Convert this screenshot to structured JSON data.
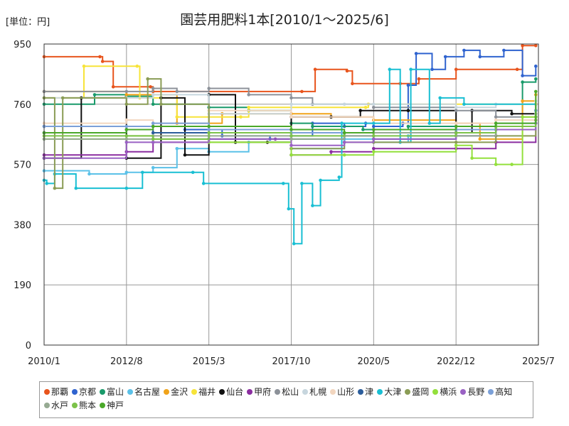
{
  "page": {
    "unit": "[単位：円]",
    "title": "園芸用肥料1本[2010/1～2025/6]"
  },
  "chart_data": {
    "type": "line",
    "ylim": [
      0,
      950
    ],
    "yticks": [
      0,
      190,
      380,
      570,
      760,
      950
    ],
    "xlim": [
      "2010/1",
      "2025/7"
    ],
    "xticks": [
      "2010/1",
      "2012/8",
      "2015/3",
      "2017/10",
      "2020/5",
      "2022/12",
      "2025/7"
    ],
    "grid": true,
    "legend_position": "bottom",
    "series": [
      {
        "name": "那覇",
        "color": "#e8541c",
        "points": [
          [
            "2010/1",
            910
          ],
          [
            "2011/10",
            910
          ],
          [
            "2011/11",
            895
          ],
          [
            "2012/3",
            815
          ],
          [
            "2013/5",
            815
          ],
          [
            "2013/6",
            800
          ],
          [
            "2018/2",
            800
          ],
          [
            "2018/7",
            870
          ],
          [
            "2019/7",
            865
          ],
          [
            "2019/9",
            825
          ],
          [
            "2021/3",
            825
          ],
          [
            "2021/10",
            840
          ],
          [
            "2022/12",
            870
          ],
          [
            "2024/11",
            870
          ],
          [
            "2025/1",
            945
          ],
          [
            "2025/6",
            945
          ]
        ]
      },
      {
        "name": "京都",
        "color": "#2f63cf",
        "points": [
          [
            "2010/1",
            690
          ],
          [
            "2013/6",
            690
          ],
          [
            "2014/6",
            680
          ],
          [
            "2015/8",
            660
          ],
          [
            "2017/2",
            650
          ],
          [
            "2017/10",
            660
          ],
          [
            "2018/6",
            700
          ],
          [
            "2019/6",
            690
          ],
          [
            "2020/2",
            700
          ],
          [
            "2020/5",
            690
          ],
          [
            "2021/4",
            700
          ],
          [
            "2021/6",
            820
          ],
          [
            "2021/9",
            920
          ],
          [
            "2022/3",
            870
          ],
          [
            "2022/8",
            910
          ],
          [
            "2023/3",
            930
          ],
          [
            "2023/9",
            910
          ],
          [
            "2024/6",
            930
          ],
          [
            "2025/1",
            850
          ],
          [
            "2025/6",
            880
          ]
        ]
      },
      {
        "name": "富山",
        "color": "#199a6a",
        "points": [
          [
            "2010/1",
            760
          ],
          [
            "2011/8",
            790
          ],
          [
            "2012/8",
            785
          ],
          [
            "2013/6",
            760
          ],
          [
            "2015/3",
            750
          ],
          [
            "2016/6",
            740
          ],
          [
            "2017/10",
            700
          ],
          [
            "2018/6",
            690
          ],
          [
            "2020/1",
            680
          ],
          [
            "2021/6",
            690
          ],
          [
            "2022/12",
            680
          ],
          [
            "2024/3",
            690
          ],
          [
            "2025/1",
            830
          ],
          [
            "2025/6",
            840
          ]
        ]
      },
      {
        "name": "名古屋",
        "color": "#5bc1e8",
        "points": [
          [
            "2010/1",
            550
          ],
          [
            "2011/6",
            540
          ],
          [
            "2012/8",
            545
          ],
          [
            "2013/6",
            560
          ],
          [
            "2014/3",
            620
          ],
          [
            "2015/3",
            610
          ],
          [
            "2016/6",
            640
          ],
          [
            "2017/10",
            620
          ],
          [
            "2019/6",
            650
          ],
          [
            "2020/5",
            640
          ],
          [
            "2021/6",
            660
          ],
          [
            "2022/12",
            670
          ],
          [
            "2024/3",
            680
          ],
          [
            "2025/6",
            700
          ]
        ]
      },
      {
        "name": "金沢",
        "color": "#f0a31a",
        "points": [
          [
            "2010/1",
            800
          ],
          [
            "2012/8",
            790
          ],
          [
            "2014/3",
            700
          ],
          [
            "2015/8",
            730
          ],
          [
            "2017/10",
            730
          ],
          [
            "2019/1",
            720
          ],
          [
            "2020/5",
            710
          ],
          [
            "2022/12",
            700
          ],
          [
            "2023/9",
            650
          ],
          [
            "2025/1",
            770
          ],
          [
            "2025/6",
            790
          ]
        ]
      },
      {
        "name": "福井",
        "color": "#f7e43a",
        "points": [
          [
            "2010/1",
            780
          ],
          [
            "2011/4",
            880
          ],
          [
            "2012/12",
            880
          ],
          [
            "2013/1",
            780
          ],
          [
            "2014/3",
            720
          ],
          [
            "2016/3",
            720
          ],
          [
            "2016/6",
            750
          ],
          [
            "2020/2",
            750
          ],
          [
            "2020/3",
            760
          ],
          [
            "2025/6",
            760
          ]
        ]
      },
      {
        "name": "仙台",
        "color": "#111111",
        "points": [
          [
            "2010/1",
            590
          ],
          [
            "2011/3",
            780
          ],
          [
            "2012/8",
            590
          ],
          [
            "2013/9",
            780
          ],
          [
            "2014/6",
            600
          ],
          [
            "2015/3",
            790
          ],
          [
            "2016/1",
            640
          ],
          [
            "2017/1",
            640
          ],
          [
            "2017/10",
            720
          ],
          [
            "2019/1",
            720
          ],
          [
            "2019/12",
            740
          ],
          [
            "2021/6",
            740
          ],
          [
            "2022/12",
            670
          ],
          [
            "2023/6",
            740
          ],
          [
            "2024/9",
            730
          ],
          [
            "2025/6",
            760
          ]
        ]
      },
      {
        "name": "甲府",
        "color": "#8b2da0",
        "points": [
          [
            "2010/1",
            600
          ],
          [
            "2012/8",
            610
          ],
          [
            "2013/6",
            640
          ],
          [
            "2015/3",
            650
          ],
          [
            "2017/4",
            650
          ],
          [
            "2017/10",
            600
          ],
          [
            "2019/1",
            610
          ],
          [
            "2020/5",
            620
          ],
          [
            "2022/12",
            620
          ],
          [
            "2024/3",
            640
          ],
          [
            "2025/6",
            720
          ]
        ]
      },
      {
        "name": "松山",
        "color": "#8c9199",
        "points": [
          [
            "2010/1",
            800
          ],
          [
            "2012/8",
            800
          ],
          [
            "2013/6",
            810
          ],
          [
            "2014/3",
            800
          ],
          [
            "2015/3",
            810
          ],
          [
            "2016/6",
            790
          ],
          [
            "2017/10",
            780
          ],
          [
            "2018/6",
            760
          ],
          [
            "2020/5",
            750
          ],
          [
            "2022/12",
            740
          ],
          [
            "2024/3",
            720
          ],
          [
            "2025/6",
            720
          ]
        ]
      },
      {
        "name": "札幌",
        "color": "#c7d6de",
        "points": [
          [
            "2010/1",
            780
          ],
          [
            "2012/8",
            780
          ],
          [
            "2013/6",
            790
          ],
          [
            "2015/3",
            730
          ],
          [
            "2017/10",
            760
          ],
          [
            "2019/6",
            760
          ],
          [
            "2020/5",
            760
          ],
          [
            "2022/12",
            750
          ],
          [
            "2024/3",
            760
          ],
          [
            "2025/6",
            770
          ]
        ]
      },
      {
        "name": "山形",
        "color": "#f2d6bf",
        "points": [
          [
            "2010/1",
            700
          ],
          [
            "2012/8",
            710
          ],
          [
            "2013/6",
            700
          ],
          [
            "2015/3",
            740
          ],
          [
            "2017/10",
            720
          ],
          [
            "2020/5",
            700
          ],
          [
            "2022/12",
            700
          ],
          [
            "2024/3",
            710
          ],
          [
            "2025/6",
            760
          ]
        ]
      },
      {
        "name": "津",
        "color": "#2b5d9b",
        "points": [
          [
            "2010/1",
            670
          ],
          [
            "2012/8",
            680
          ],
          [
            "2013/6",
            670
          ],
          [
            "2015/3",
            650
          ],
          [
            "2017/10",
            650
          ],
          [
            "2019/6",
            660
          ],
          [
            "2020/5",
            650
          ],
          [
            "2022/12",
            660
          ],
          [
            "2024/3",
            680
          ],
          [
            "2025/6",
            740
          ]
        ]
      },
      {
        "name": "大津",
        "color": "#19bfd3",
        "points": [
          [
            "2010/1",
            520
          ],
          [
            "2010/2",
            510
          ],
          [
            "2010/5",
            540
          ],
          [
            "2011/1",
            495
          ],
          [
            "2012/8",
            495
          ],
          [
            "2013/2",
            545
          ],
          [
            "2014/9",
            545
          ],
          [
            "2015/1",
            510
          ],
          [
            "2017/7",
            510
          ],
          [
            "2017/9",
            430
          ],
          [
            "2017/11",
            320
          ],
          [
            "2018/2",
            510
          ],
          [
            "2018/6",
            440
          ],
          [
            "2018/9",
            520
          ],
          [
            "2019/4",
            530
          ],
          [
            "2019/5",
            700
          ],
          [
            "2020/5",
            700
          ],
          [
            "2020/11",
            870
          ],
          [
            "2021/3",
            640
          ],
          [
            "2021/7",
            870
          ],
          [
            "2022/2",
            700
          ],
          [
            "2022/6",
            780
          ],
          [
            "2023/3",
            760
          ],
          [
            "2025/6",
            740
          ]
        ]
      },
      {
        "name": "盛岡",
        "color": "#8a9c55",
        "points": [
          [
            "2010/1",
            780
          ],
          [
            "2010/5",
            495
          ],
          [
            "2010/8",
            780
          ],
          [
            "2012/8",
            760
          ],
          [
            "2013/4",
            840
          ],
          [
            "2013/9",
            760
          ],
          [
            "2015/3",
            640
          ],
          [
            "2017/10",
            620
          ],
          [
            "2019/6",
            640
          ],
          [
            "2020/5",
            640
          ],
          [
            "2022/12",
            640
          ],
          [
            "2024/3",
            660
          ],
          [
            "2025/6",
            710
          ]
        ]
      },
      {
        "name": "横浜",
        "color": "#93e03c",
        "points": [
          [
            "2010/1",
            650
          ],
          [
            "2012/8",
            660
          ],
          [
            "2013/6",
            650
          ],
          [
            "2015/3",
            640
          ],
          [
            "2017/10",
            600
          ],
          [
            "2019/6",
            600
          ],
          [
            "2020/5",
            610
          ],
          [
            "2022/12",
            630
          ],
          [
            "2023/6",
            590
          ],
          [
            "2024/3",
            570
          ],
          [
            "2024/9",
            570
          ],
          [
            "2025/1",
            720
          ],
          [
            "2025/6",
            720
          ]
        ]
      },
      {
        "name": "長野",
        "color": "#9a62c4",
        "points": [
          [
            "2010/1",
            590
          ],
          [
            "2012/8",
            640
          ],
          [
            "2013/6",
            640
          ],
          [
            "2015/3",
            650
          ],
          [
            "2017/10",
            630
          ],
          [
            "2019/6",
            640
          ],
          [
            "2020/5",
            650
          ],
          [
            "2022/12",
            660
          ],
          [
            "2024/3",
            680
          ],
          [
            "2025/6",
            700
          ]
        ]
      },
      {
        "name": "高知",
        "color": "#7ba0d8",
        "points": [
          [
            "2010/1",
            690
          ],
          [
            "2012/8",
            690
          ],
          [
            "2013/6",
            700
          ],
          [
            "2015/3",
            680
          ],
          [
            "2017/10",
            670
          ],
          [
            "2019/6",
            670
          ],
          [
            "2020/5",
            680
          ],
          [
            "2022/12",
            680
          ],
          [
            "2024/3",
            700
          ],
          [
            "2025/6",
            740
          ]
        ]
      },
      {
        "name": "水戸",
        "color": "#96aa92",
        "points": [
          [
            "2010/1",
            650
          ],
          [
            "2012/8",
            650
          ],
          [
            "2013/6",
            660
          ],
          [
            "2015/3",
            660
          ],
          [
            "2017/10",
            650
          ],
          [
            "2019/6",
            660
          ],
          [
            "2020/5",
            670
          ],
          [
            "2022/12",
            660
          ],
          [
            "2024/3",
            690
          ],
          [
            "2025/6",
            730
          ]
        ]
      },
      {
        "name": "熊本",
        "color": "#7cc24a",
        "points": [
          [
            "2010/1",
            660
          ],
          [
            "2012/8",
            660
          ],
          [
            "2013/6",
            650
          ],
          [
            "2015/3",
            670
          ],
          [
            "2017/10",
            660
          ],
          [
            "2019/6",
            670
          ],
          [
            "2020/5",
            660
          ],
          [
            "2022/12",
            670
          ],
          [
            "2024/3",
            690
          ],
          [
            "2025/6",
            720
          ]
        ]
      },
      {
        "name": "神戸",
        "color": "#4aa829",
        "points": [
          [
            "2010/1",
            670
          ],
          [
            "2012/8",
            680
          ],
          [
            "2013/6",
            690
          ],
          [
            "2015/3",
            690
          ],
          [
            "2017/10",
            680
          ],
          [
            "2019/6",
            670
          ],
          [
            "2020/5",
            680
          ],
          [
            "2022/12",
            690
          ],
          [
            "2024/3",
            700
          ],
          [
            "2025/6",
            800
          ]
        ]
      }
    ]
  }
}
